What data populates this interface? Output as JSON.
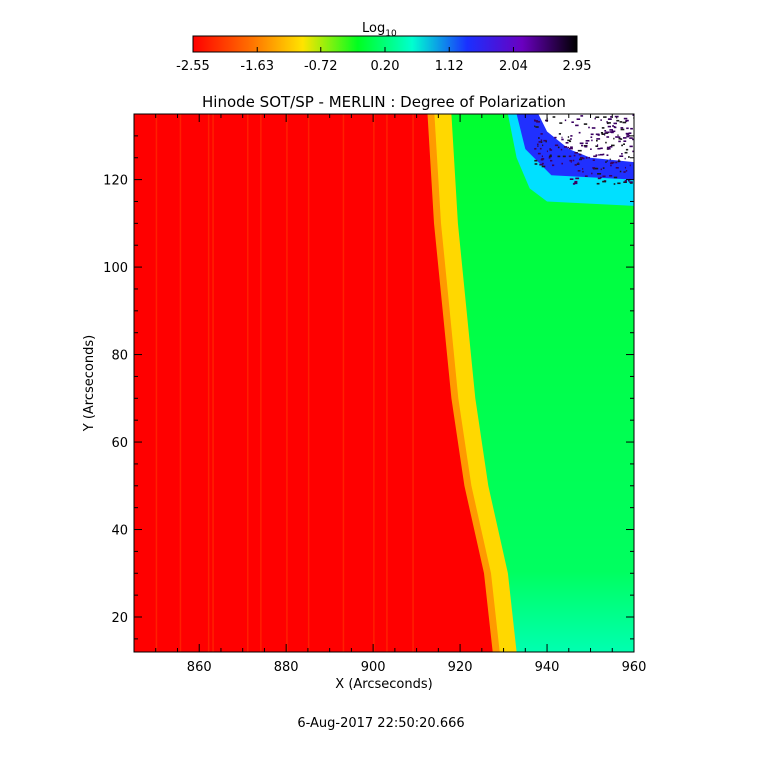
{
  "chart_data": {
    "type": "heatmap",
    "title": "Hinode SOT/SP - MERLIN : Degree of Polarization",
    "xlabel": "X (Arcseconds)",
    "ylabel": "Y (Arcseconds)",
    "xlim": [
      845,
      960
    ],
    "ylim": [
      12,
      135
    ],
    "x_ticks": [
      860,
      880,
      900,
      920,
      940,
      960
    ],
    "y_ticks": [
      20,
      40,
      60,
      80,
      100,
      120
    ],
    "colorbar": {
      "label": "Log",
      "label_subscript": "10",
      "range": [
        -2.55,
        2.95
      ],
      "ticks": [
        "-2.55",
        "-1.63",
        "-0.72",
        "0.20",
        "1.12",
        "2.04",
        "2.95"
      ],
      "colormap": [
        "#ff0000",
        "#ff6a00",
        "#ffe400",
        "#00ff20",
        "#00ffd0",
        "#1a30ff",
        "#6a00c0",
        "#000000"
      ]
    },
    "limb_edge_x": [
      [
        12,
        927.5
      ],
      [
        30,
        925.5
      ],
      [
        50,
        921.0
      ],
      [
        70,
        918.0
      ],
      [
        90,
        916.0
      ],
      [
        110,
        914.0
      ],
      [
        135,
        912.5
      ]
    ],
    "log10_levels": {
      "disk": -2.55,
      "limb_band": -1.3,
      "off_limb": 0.2,
      "off_limb_bottom_right": 0.6,
      "top_right_blue": 1.9
    },
    "date": "6-Aug-2017 22:50:20.666"
  }
}
